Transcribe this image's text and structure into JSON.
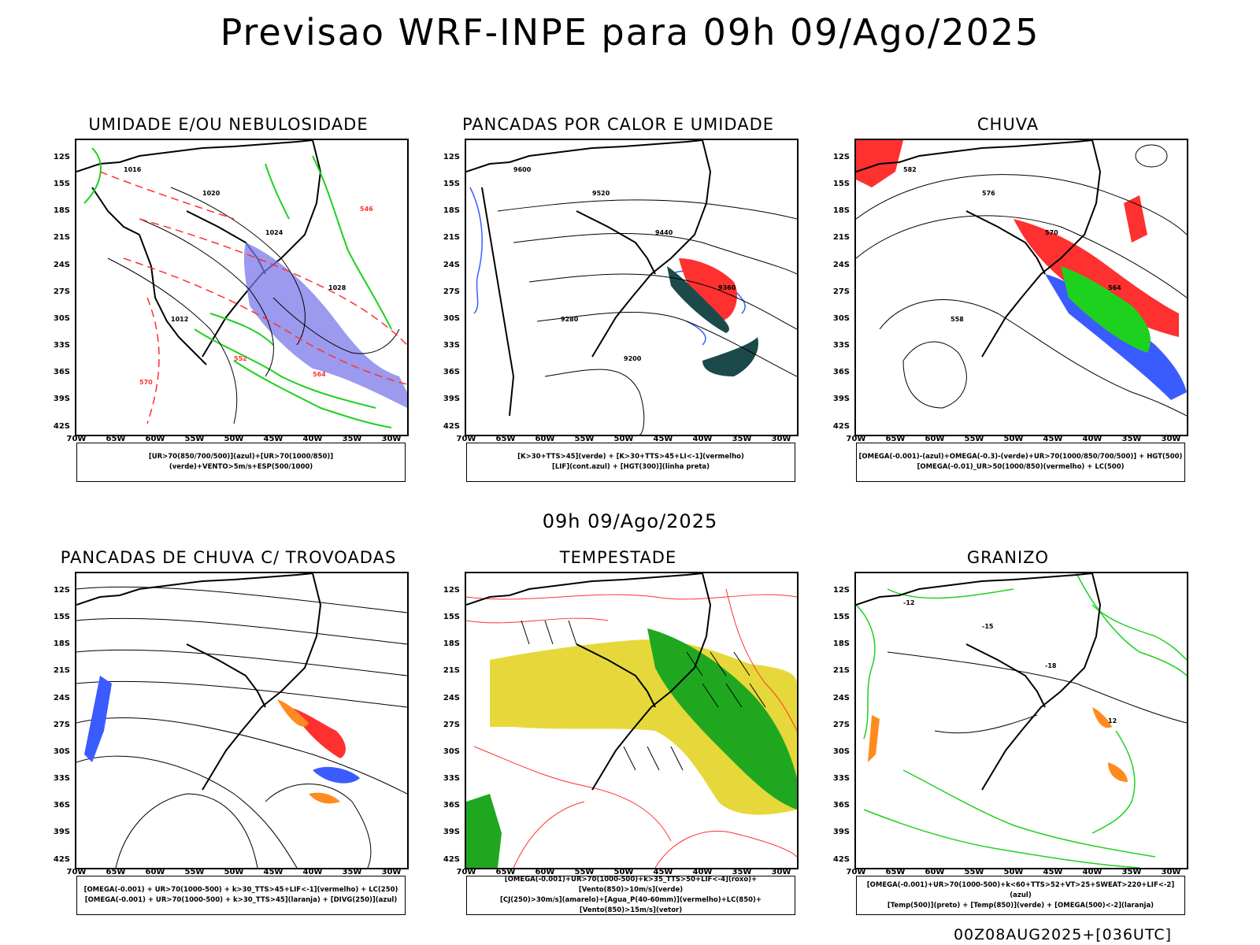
{
  "title": "Previsao WRF-INPE  para 09h 09/Ago/2025",
  "mid_title": "09h 09/Ago/2025",
  "footer": "00Z08AUG2025+[036UTC]",
  "axes": {
    "lat_labels": [
      "12S",
      "15S",
      "18S",
      "21S",
      "24S",
      "27S",
      "30S",
      "33S",
      "36S",
      "39S",
      "42S"
    ],
    "lon_labels": [
      "70W",
      "65W",
      "60W",
      "55W",
      "50W",
      "45W",
      "40W",
      "35W",
      "30W"
    ]
  },
  "panels": [
    {
      "title": "UMIDADE E/OU NEBULOSIDADE",
      "legend": [
        "[UR>70(850/700/500)](azul)+[UR>70(1000/850)](verde)+VENTO>5m/s+ESP(500/1000)"
      ],
      "contour_labels": [
        "1016",
        "1020",
        "1024",
        "1028",
        "1012",
        "552",
        "564",
        "570",
        "546"
      ]
    },
    {
      "title": "PANCADAS POR CALOR E UMIDADE",
      "legend": [
        "[K>30+TTS>45](verde) + [K>30+TTS>45+LI<-1](vermelho)",
        "[LIF](cont.azul) + [HGT(300)](linha preta)"
      ],
      "contour_labels": [
        "9600",
        "9520",
        "9440",
        "9360",
        "9280",
        "9200"
      ]
    },
    {
      "title": "CHUVA",
      "legend": [
        "[OMEGA(-0.001)-(azul)+OMEGA(-0.3)-(verde)+UR>70(1000/850/700/500)] + HGT(500)",
        "[OMEGA(-0.01)_UR>50(1000/850)(vermelho) + LC(500)"
      ],
      "contour_labels": [
        "582",
        "576",
        "570",
        "564",
        "558"
      ]
    },
    {
      "title": "PANCADAS DE CHUVA C/ TROVOADAS",
      "legend": [
        "[OMEGA(-0.001) + UR>70(1000-500) + k>30_TTS>45+LIF<-1](vermelho) + LC(250)",
        "[OMEGA(-0.001) + UR>70(1000-500) + k>30_TTS>45](laranja) + [DIVG(250)](azul)"
      ],
      "contour_labels": []
    },
    {
      "title": "TEMPESTADE",
      "legend": [
        "[OMEGA(-0.001)+UR>70(1000-500)+k>35_TTS>50+LIF<-4](roxo)+[Vento(850)>10m/s](verde)",
        "[CJ(250)>30m/s](amarelo)+[Agua_P(40-60mm)](vermelho)+LC(850)+[Vento(850)>15m/s](vetor)"
      ],
      "contour_labels": []
    },
    {
      "title": "GRANIZO",
      "legend": [
        "[OMEGA(-0.001)+UR>70(1000-500)+k<60+TTS>52+VT>25+SWEAT>220+LIF<-2](azul)",
        "[Temp(500)](preto) + [Temp(850)](verde) + [OMEGA(500)<-2](laranja)"
      ],
      "contour_labels": [
        "-12",
        "-15",
        "-18",
        "12"
      ]
    }
  ],
  "colors": {
    "blue": "#3a5cff",
    "green": "#1fd11f",
    "red": "#ff3030",
    "orange": "#ff8a1f",
    "yellow": "#e6d83a",
    "teal": "#1c4a4a"
  }
}
